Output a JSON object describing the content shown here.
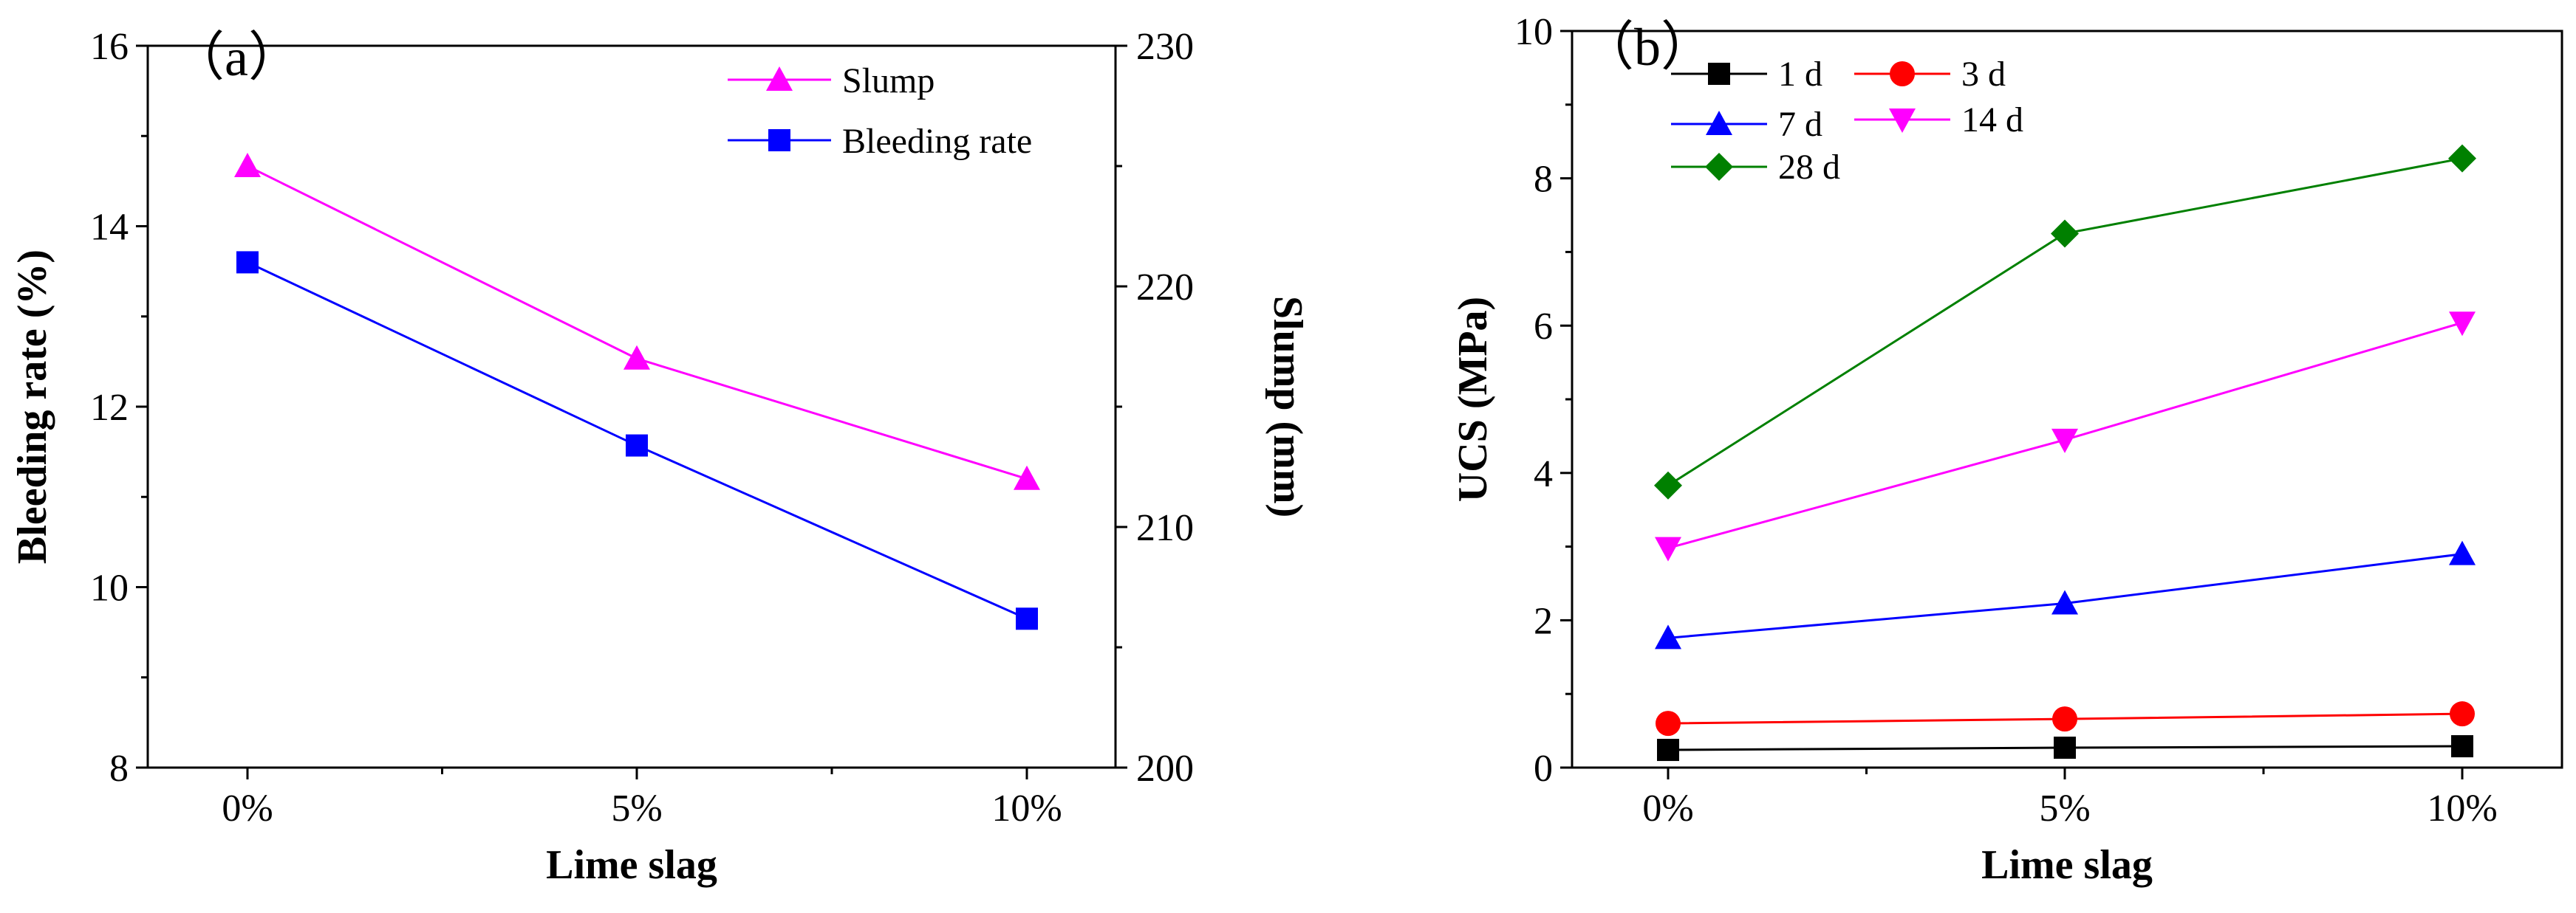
{
  "chart_data": [
    {
      "panel": "（a）",
      "type": "line",
      "categories": [
        "0%",
        "5%",
        "10%"
      ],
      "xlabel": "Lime slag",
      "left_axis": {
        "label": "Bleeding rate (%)",
        "range": [
          8,
          16
        ],
        "ticks": [
          8,
          10,
          12,
          14,
          16
        ]
      },
      "right_axis": {
        "label": "Slump (mm)",
        "range": [
          200,
          230
        ],
        "ticks": [
          200,
          210,
          220,
          230
        ]
      },
      "series": [
        {
          "name": "Slump",
          "axis": "right",
          "color": "#ff00ff",
          "marker": "triangle-up",
          "values": [
            225,
            217,
            212
          ]
        },
        {
          "name": "Bleeding rate",
          "axis": "left",
          "color": "#0000ff",
          "marker": "square",
          "values": [
            13.6,
            11.57,
            9.65
          ]
        }
      ],
      "legend": "top-right"
    },
    {
      "panel": "（b）",
      "type": "line",
      "categories": [
        "0%",
        "5%",
        "10%"
      ],
      "xlabel": "Lime slag",
      "ylabel": "UCS (MPa)",
      "ylim": [
        0,
        10
      ],
      "yticks": [
        0,
        2,
        4,
        6,
        8,
        10
      ],
      "series": [
        {
          "name": "1 d",
          "color": "#000000",
          "marker": "square",
          "values": [
            0.24,
            0.27,
            0.29
          ]
        },
        {
          "name": "3 d",
          "color": "#ff0000",
          "marker": "circle",
          "values": [
            0.6,
            0.66,
            0.73
          ]
        },
        {
          "name": "7 d",
          "color": "#0000ff",
          "marker": "triangle-up",
          "values": [
            1.76,
            2.23,
            2.9
          ]
        },
        {
          "name": "14 d",
          "color": "#ff00ff",
          "marker": "triangle-down",
          "values": [
            2.98,
            4.45,
            6.04
          ]
        },
        {
          "name": "28 d",
          "color": "#008000",
          "marker": "diamond",
          "values": [
            3.83,
            7.25,
            8.27
          ]
        }
      ],
      "legend": "top-left"
    }
  ]
}
